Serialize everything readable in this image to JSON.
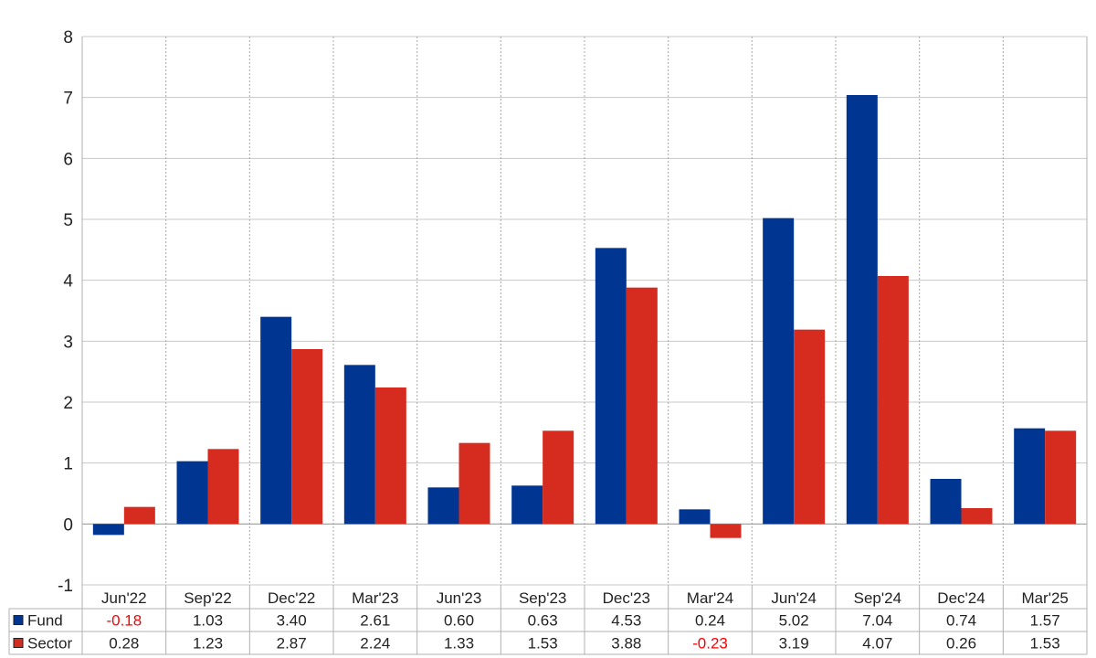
{
  "chart_data": {
    "type": "bar",
    "categories": [
      "Jun'22",
      "Sep'22",
      "Dec'22",
      "Mar'23",
      "Jun'23",
      "Sep'23",
      "Dec'23",
      "Mar'24",
      "Jun'24",
      "Sep'24",
      "Dec'24",
      "Mar'25"
    ],
    "series": [
      {
        "name": "Fund",
        "color": "#003591",
        "values": [
          -0.18,
          1.03,
          3.4,
          2.61,
          0.6,
          0.63,
          4.53,
          0.24,
          5.02,
          7.04,
          0.74,
          1.57
        ],
        "labels": [
          "-0.18",
          "1.03",
          "3.40",
          "2.61",
          "0.60",
          "0.63",
          "4.53",
          "0.24",
          "5.02",
          "7.04",
          "0.74",
          "1.57"
        ]
      },
      {
        "name": "Sector",
        "color": "#d62b1f",
        "values": [
          0.28,
          1.23,
          2.87,
          2.24,
          1.33,
          1.53,
          3.88,
          -0.23,
          3.19,
          4.07,
          0.26,
          1.53
        ],
        "labels": [
          "0.28",
          "1.23",
          "2.87",
          "2.24",
          "1.33",
          "1.53",
          "3.88",
          "-0.23",
          "3.19",
          "4.07",
          "0.26",
          "1.53"
        ]
      }
    ],
    "ylim": [
      -1,
      8
    ],
    "yticks": [
      "-1",
      "0",
      "1",
      "2",
      "3",
      "4",
      "5",
      "6",
      "7",
      "8"
    ],
    "grid": true,
    "legend": "table-below",
    "negative_label_color": "#ff0000"
  }
}
